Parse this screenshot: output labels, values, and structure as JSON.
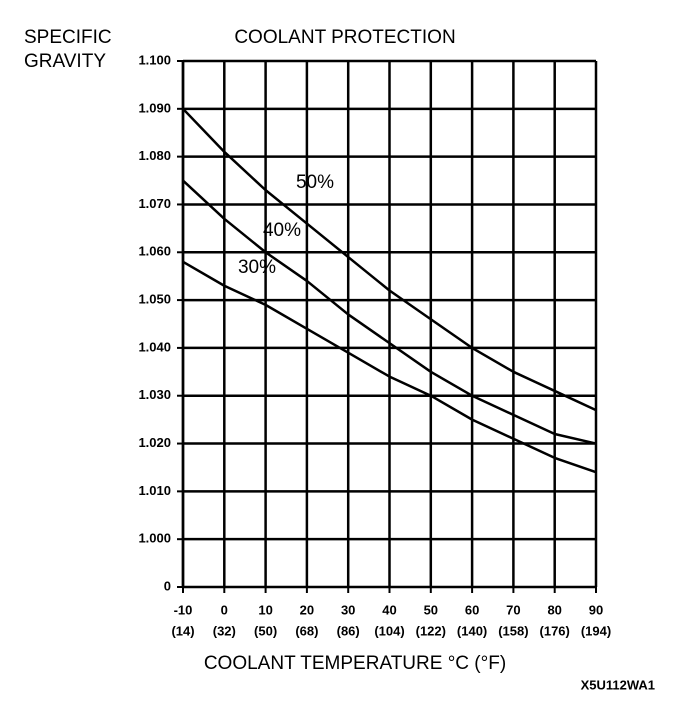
{
  "chart_data": {
    "type": "line",
    "title": "COOLANT PROTECTION",
    "y_label": [
      "SPECIFIC",
      "GRAVITY"
    ],
    "x_label": "COOLANT TEMPERATURE °C (°F)",
    "footnote": "X5U112WA1",
    "x": [
      -10,
      0,
      10,
      20,
      30,
      40,
      50,
      60,
      70,
      80,
      90
    ],
    "x_secondary_labels": [
      "(14)",
      "(32)",
      "(50)",
      "(68)",
      "(86)",
      "(104)",
      "(122)",
      "(140)",
      "(158)",
      "(176)",
      "(194)"
    ],
    "xlim": [
      -10,
      90
    ],
    "xticks": [
      -10,
      0,
      10,
      20,
      30,
      40,
      50,
      60,
      70,
      80,
      90
    ],
    "ylim": [
      0.99,
      1.1
    ],
    "yticks": [
      0,
      {
        "value": 1.0,
        "label": "1.000"
      },
      {
        "value": 1.01,
        "label": "1.010"
      },
      {
        "value": 1.02,
        "label": "1.020"
      },
      {
        "value": 1.03,
        "label": "1.030"
      },
      {
        "value": 1.04,
        "label": "1.040"
      },
      {
        "value": 1.05,
        "label": "1.050"
      },
      {
        "value": 1.06,
        "label": "1.060"
      },
      {
        "value": 1.07,
        "label": "1.070"
      },
      {
        "value": 1.08,
        "label": "1.080"
      },
      {
        "value": 1.09,
        "label": "1.090"
      },
      {
        "value": 1.1,
        "label": "1.100"
      }
    ],
    "grid": true,
    "series": [
      {
        "name": "50%",
        "color": "#000000",
        "values": [
          1.09,
          1.081,
          1.073,
          1.066,
          1.059,
          1.052,
          1.046,
          1.04,
          1.035,
          1.031,
          1.027
        ]
      },
      {
        "name": "40%",
        "color": "#000000",
        "values": [
          1.075,
          1.067,
          1.06,
          1.054,
          1.047,
          1.041,
          1.035,
          1.03,
          1.026,
          1.022,
          1.02
        ]
      },
      {
        "name": "30%",
        "color": "#000000",
        "values": [
          1.058,
          1.053,
          1.049,
          1.044,
          1.039,
          1.034,
          1.03,
          1.025,
          1.021,
          1.017,
          1.014
        ]
      }
    ]
  }
}
